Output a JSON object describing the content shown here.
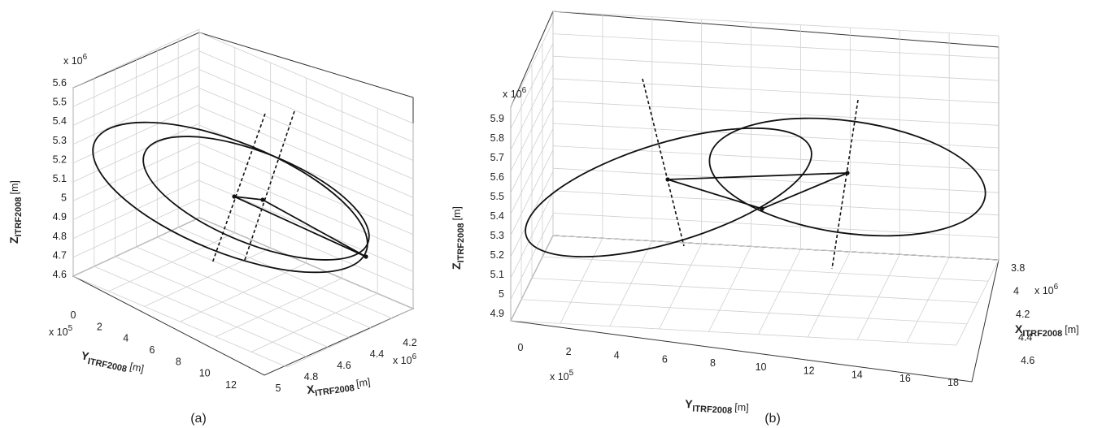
{
  "chart_data": [
    {
      "type": "line3d",
      "panel": "(a)",
      "caption": "(a)",
      "z_axis": {
        "label_main": "Z",
        "label_sub": "ITRF2008",
        "unit": "[m]",
        "ticks": [
          "4.6",
          "4.7",
          "4.8",
          "4.9",
          "5",
          "5.1",
          "5.2",
          "5.3",
          "5.4",
          "5.5",
          "5.6"
        ],
        "multiplier_base": "x 10",
        "multiplier_exp": "6"
      },
      "y_axis": {
        "label_main": "Y",
        "label_sub": "ITRF2008",
        "unit": "[m]",
        "ticks": [
          "0",
          "2",
          "4",
          "6",
          "8",
          "10",
          "12"
        ],
        "multiplier_base": "x 10",
        "multiplier_exp": "5"
      },
      "x_axis": {
        "label_main": "X",
        "label_sub": "ITRF2008",
        "unit": "[m]",
        "ticks": [
          "5",
          "4.8",
          "4.6",
          "4.4",
          "4.2"
        ],
        "multiplier_base": "x 10",
        "multiplier_exp": "6"
      },
      "series": [
        {
          "kind": "ellipse",
          "values": []
        },
        {
          "kind": "ellipse",
          "values": []
        },
        {
          "kind": "dashed-line",
          "values": []
        },
        {
          "kind": "dashed-line",
          "values": []
        },
        {
          "kind": "triangle",
          "values": []
        }
      ],
      "grid": true
    },
    {
      "type": "line3d",
      "panel": "(b)",
      "caption": "(b)",
      "z_axis": {
        "label_main": "Z",
        "label_sub": "ITRF2008",
        "unit": "[m]",
        "ticks": [
          "4.9",
          "5",
          "5.1",
          "5.2",
          "5.3",
          "5.4",
          "5.5",
          "5.6",
          "5.7",
          "5.8",
          "5.9"
        ],
        "multiplier_base": "x 10",
        "multiplier_exp": "6"
      },
      "y_axis": {
        "label_main": "Y",
        "label_sub": "ITRF2008",
        "unit": "[m]",
        "ticks": [
          "0",
          "2",
          "4",
          "6",
          "8",
          "10",
          "12",
          "14",
          "16",
          "18"
        ],
        "multiplier_base": "x 10",
        "multiplier_exp": "5"
      },
      "x_axis": {
        "label_main": "X",
        "label_sub": "ITRF2008",
        "unit": "[m]",
        "ticks": [
          "3.8",
          "4",
          "4.2",
          "4.4",
          "4.6"
        ],
        "multiplier_base": "x 10",
        "multiplier_exp": "6"
      },
      "series": [
        {
          "kind": "ellipse",
          "values": []
        },
        {
          "kind": "ellipse",
          "values": []
        },
        {
          "kind": "dashed-line",
          "values": []
        },
        {
          "kind": "dashed-line",
          "values": []
        },
        {
          "kind": "triangle",
          "values": []
        }
      ],
      "grid": true
    }
  ]
}
